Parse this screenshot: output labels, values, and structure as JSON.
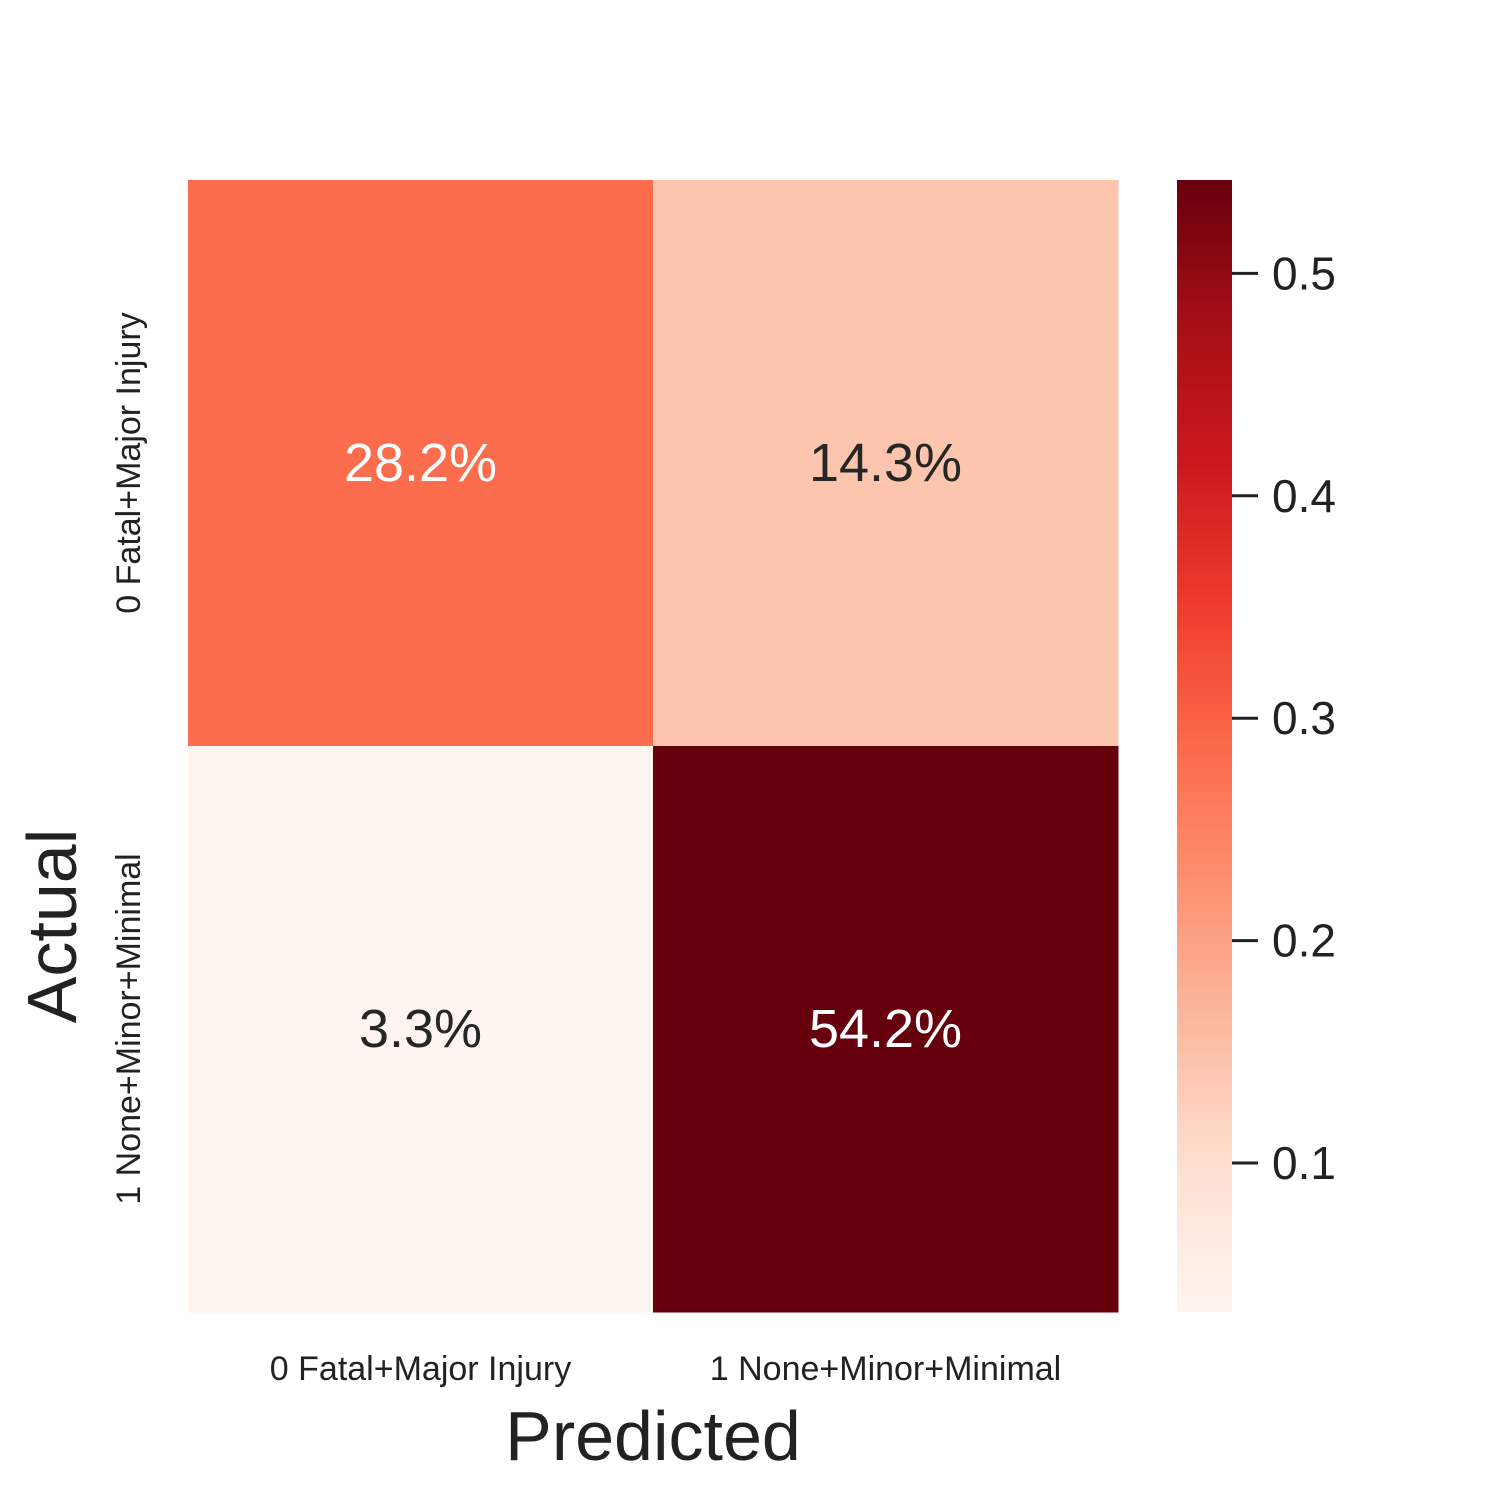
{
  "chart_data": {
    "type": "heatmap",
    "title": "",
    "xlabel": "Predicted",
    "ylabel": "Actual",
    "x_categories": [
      "0 Fatal+Major Injury",
      "1 None+Minor+Minimal"
    ],
    "y_categories": [
      "0 Fatal+Major Injury",
      "1 None+Minor+Minimal"
    ],
    "values": [
      [
        0.282,
        0.143
      ],
      [
        0.033,
        0.542
      ]
    ],
    "cell_labels": [
      [
        "28.2%",
        "14.3%"
      ],
      [
        "3.3%",
        "54.2%"
      ]
    ],
    "colormap": "Reds",
    "color_range": [
      0.033,
      0.542
    ],
    "colorbar": {
      "ticks": [
        0.1,
        0.2,
        0.3,
        0.4,
        0.5
      ],
      "tick_labels": [
        "0.1",
        "0.2",
        "0.3",
        "0.4",
        "0.5"
      ]
    },
    "grid": false,
    "legend": "colorbar-right"
  }
}
